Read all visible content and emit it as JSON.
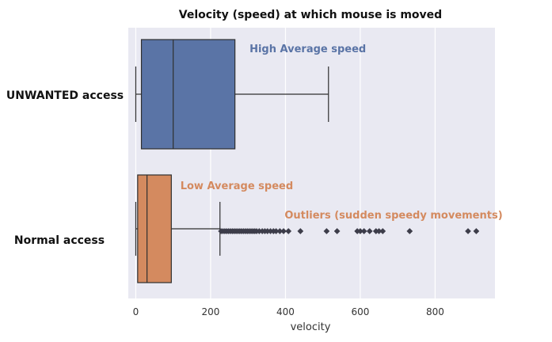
{
  "colors": {
    "plot_background": "#e9e9f2",
    "grid": "#ffffff",
    "unwanted": "#5a74a6",
    "normal": "#d48a5f",
    "line": "#2f2f2f",
    "annotation_high": "#5a74a6",
    "annotation_low": "#d48a5f",
    "annotation_outliers": "#d48a5f"
  },
  "chart_data": {
    "type": "boxplot",
    "title": "Velocity (speed) at which mouse is moved",
    "xlabel": "velocity",
    "ylabel": "",
    "xlim": [
      -20,
      960
    ],
    "xticks": [
      0,
      200,
      400,
      600,
      800
    ],
    "categories": [
      "UNWANTED access",
      "Normal access"
    ],
    "series": [
      {
        "label": "UNWANTED access",
        "whisker_low": 0,
        "q1": 15,
        "median": 100,
        "q3": 265,
        "whisker_high": 515,
        "outliers": []
      },
      {
        "label": "Normal access",
        "whisker_low": 0,
        "q1": 5,
        "median": 30,
        "q3": 95,
        "whisker_high": 225,
        "outliers": [
          228,
          233,
          238,
          243,
          248,
          253,
          258,
          263,
          268,
          273,
          278,
          283,
          288,
          293,
          298,
          303,
          308,
          313,
          318,
          323,
          330,
          338,
          345,
          352,
          360,
          368,
          375,
          385,
          395,
          408,
          440,
          510,
          538,
          592,
          600,
          610,
          625,
          642,
          650,
          660,
          732,
          888,
          910
        ]
      }
    ],
    "annotations": [
      {
        "text": "High Average speed",
        "x": 285,
        "category": "UNWANTED access"
      },
      {
        "text": "Low Average speed",
        "x": 100,
        "category": "Normal access"
      },
      {
        "text": "Outliers (sudden speedy movements)",
        "x": 440,
        "category": "Normal access"
      }
    ],
    "grid": true
  }
}
